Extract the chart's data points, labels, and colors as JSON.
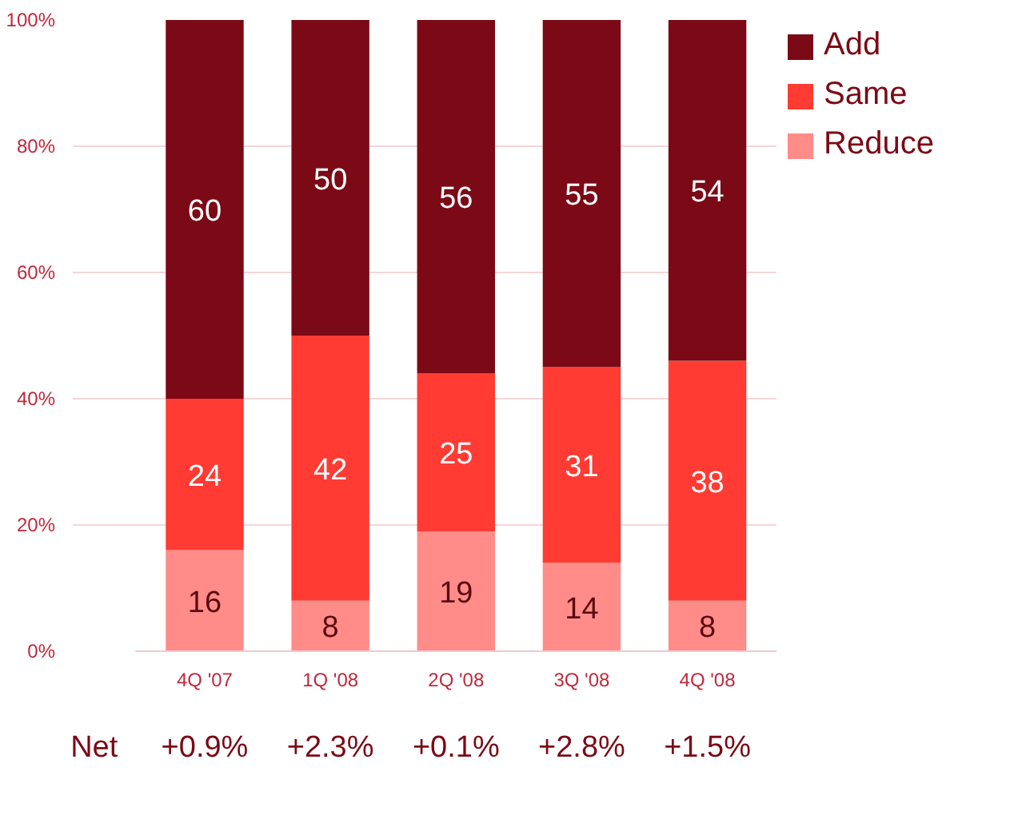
{
  "chart_data": {
    "type": "bar",
    "stacked": true,
    "categories": [
      "4Q '07",
      "1Q '08",
      "2Q '08",
      "3Q '08",
      "4Q '08"
    ],
    "series": [
      {
        "name": "Reduce",
        "color": "#ff8c88",
        "values": [
          16,
          8,
          19,
          14,
          8
        ]
      },
      {
        "name": "Same",
        "color": "#ff3b33",
        "values": [
          24,
          42,
          25,
          31,
          38
        ]
      },
      {
        "name": "Add",
        "color": "#7b0a16",
        "values": [
          60,
          50,
          56,
          55,
          54
        ]
      }
    ],
    "ylim": [
      0,
      100
    ],
    "yticks": [
      {
        "value": 0,
        "label": "0%"
      },
      {
        "value": 20,
        "label": "20%"
      },
      {
        "value": 40,
        "label": "40%"
      },
      {
        "value": 60,
        "label": "60%"
      },
      {
        "value": 80,
        "label": "80%"
      },
      {
        "value": 100,
        "label": "100%"
      }
    ],
    "grid": "y",
    "legend": "top right",
    "data_labels": true,
    "annotations": [
      "Net",
      "+0.9%",
      "+2.3%",
      "+0.1%",
      "+2.8%",
      "+1.5%"
    ]
  }
}
